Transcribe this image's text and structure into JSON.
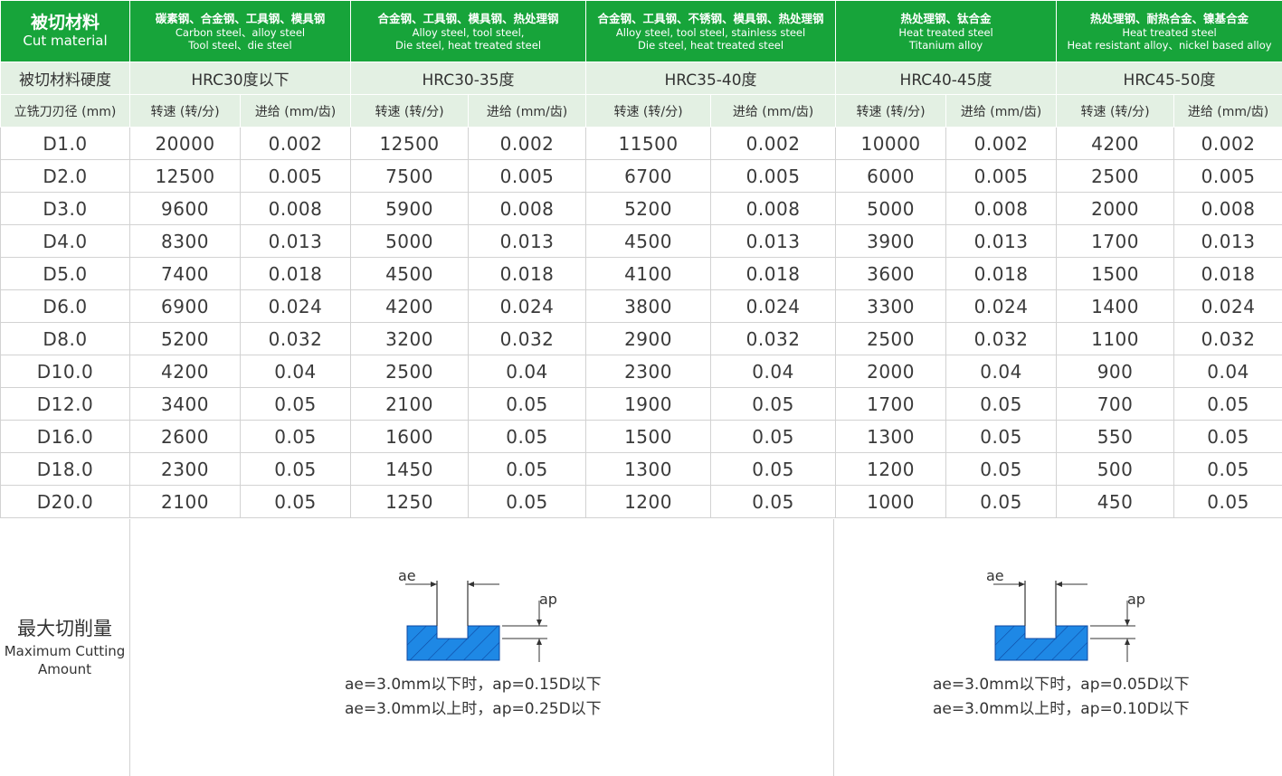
{
  "header": {
    "material_label_zh": "被切材料",
    "material_label_en": "Cut material",
    "groups": [
      {
        "zh": "碳素钢、合金钢、工具钢、模具钢",
        "en": [
          "Carbon steel、alloy steel",
          "Tool steel、die steel"
        ]
      },
      {
        "zh": "合金钢、工具钢、模具钢、热处理钢",
        "en": [
          "Alloy steel, tool steel,",
          "Die steel, heat treated steel"
        ]
      },
      {
        "zh": "合金钢、工具钢、不锈钢、模具钢、热处理钢",
        "en": [
          "Alloy steel, tool steel, stainless steel",
          "Die steel, heat treated steel"
        ]
      },
      {
        "zh": "热处理钢、钛合金",
        "en": [
          "Heat treated steel",
          "Titanium alloy"
        ]
      },
      {
        "zh": "热处理钢、耐热合金、镍基合金",
        "en": [
          "Heat treated steel",
          "Heat resistant alloy、nickel based alloy"
        ]
      }
    ]
  },
  "hardness": {
    "label": "被切材料硬度",
    "values": [
      "HRC30度以下",
      "HRC30-35度",
      "HRC35-40度",
      "HRC40-45度",
      "HRC45-50度"
    ]
  },
  "subheader": {
    "diameter_label": "立铣刀刃径 (mm)",
    "speed_label": "转速 (转/分)",
    "feed_label": "进给 (mm/齿)"
  },
  "rows": [
    {
      "d": "D1.0",
      "cells": [
        "20000",
        "0.002",
        "12500",
        "0.002",
        "11500",
        "0.002",
        "10000",
        "0.002",
        "4200",
        "0.002"
      ]
    },
    {
      "d": "D2.0",
      "cells": [
        "12500",
        "0.005",
        "7500",
        "0.005",
        "6700",
        "0.005",
        "6000",
        "0.005",
        "2500",
        "0.005"
      ]
    },
    {
      "d": "D3.0",
      "cells": [
        "9600",
        "0.008",
        "5900",
        "0.008",
        "5200",
        "0.008",
        "5000",
        "0.008",
        "2000",
        "0.008"
      ]
    },
    {
      "d": "D4.0",
      "cells": [
        "8300",
        "0.013",
        "5000",
        "0.013",
        "4500",
        "0.013",
        "3900",
        "0.013",
        "1700",
        "0.013"
      ]
    },
    {
      "d": "D5.0",
      "cells": [
        "7400",
        "0.018",
        "4500",
        "0.018",
        "4100",
        "0.018",
        "3600",
        "0.018",
        "1500",
        "0.018"
      ]
    },
    {
      "d": "D6.0",
      "cells": [
        "6900",
        "0.024",
        "4200",
        "0.024",
        "3800",
        "0.024",
        "3300",
        "0.024",
        "1400",
        "0.024"
      ]
    },
    {
      "d": "D8.0",
      "cells": [
        "5200",
        "0.032",
        "3200",
        "0.032",
        "2900",
        "0.032",
        "2500",
        "0.032",
        "1100",
        "0.032"
      ]
    },
    {
      "d": "D10.0",
      "cells": [
        "4200",
        "0.04",
        "2500",
        "0.04",
        "2300",
        "0.04",
        "2000",
        "0.04",
        "900",
        "0.04"
      ]
    },
    {
      "d": "D12.0",
      "cells": [
        "3400",
        "0.05",
        "2100",
        "0.05",
        "1900",
        "0.05",
        "1700",
        "0.05",
        "700",
        "0.05"
      ]
    },
    {
      "d": "D16.0",
      "cells": [
        "2600",
        "0.05",
        "1600",
        "0.05",
        "1500",
        "0.05",
        "1300",
        "0.05",
        "550",
        "0.05"
      ]
    },
    {
      "d": "D18.0",
      "cells": [
        "2300",
        "0.05",
        "1450",
        "0.05",
        "1300",
        "0.05",
        "1200",
        "0.05",
        "500",
        "0.05"
      ]
    },
    {
      "d": "D20.0",
      "cells": [
        "2100",
        "0.05",
        "1250",
        "0.05",
        "1200",
        "0.05",
        "1000",
        "0.05",
        "450",
        "0.05"
      ]
    }
  ],
  "max_cut": {
    "label_zh": "最大切削量",
    "label_en": "Maximum Cutting Amount",
    "ae_label": "ae",
    "ap_label": "ap",
    "colors": {
      "workpiece": "#1e88e5",
      "line": "#333333"
    },
    "left": {
      "line1": "ae=3.0mm以下时，ap=0.15D以下",
      "line2": "ae=3.0mm以上时，ap=0.25D以下"
    },
    "right": {
      "line1": "ae=3.0mm以下时，ap=0.05D以下",
      "line2": "ae=3.0mm以上时，ap=0.10D以下"
    }
  }
}
